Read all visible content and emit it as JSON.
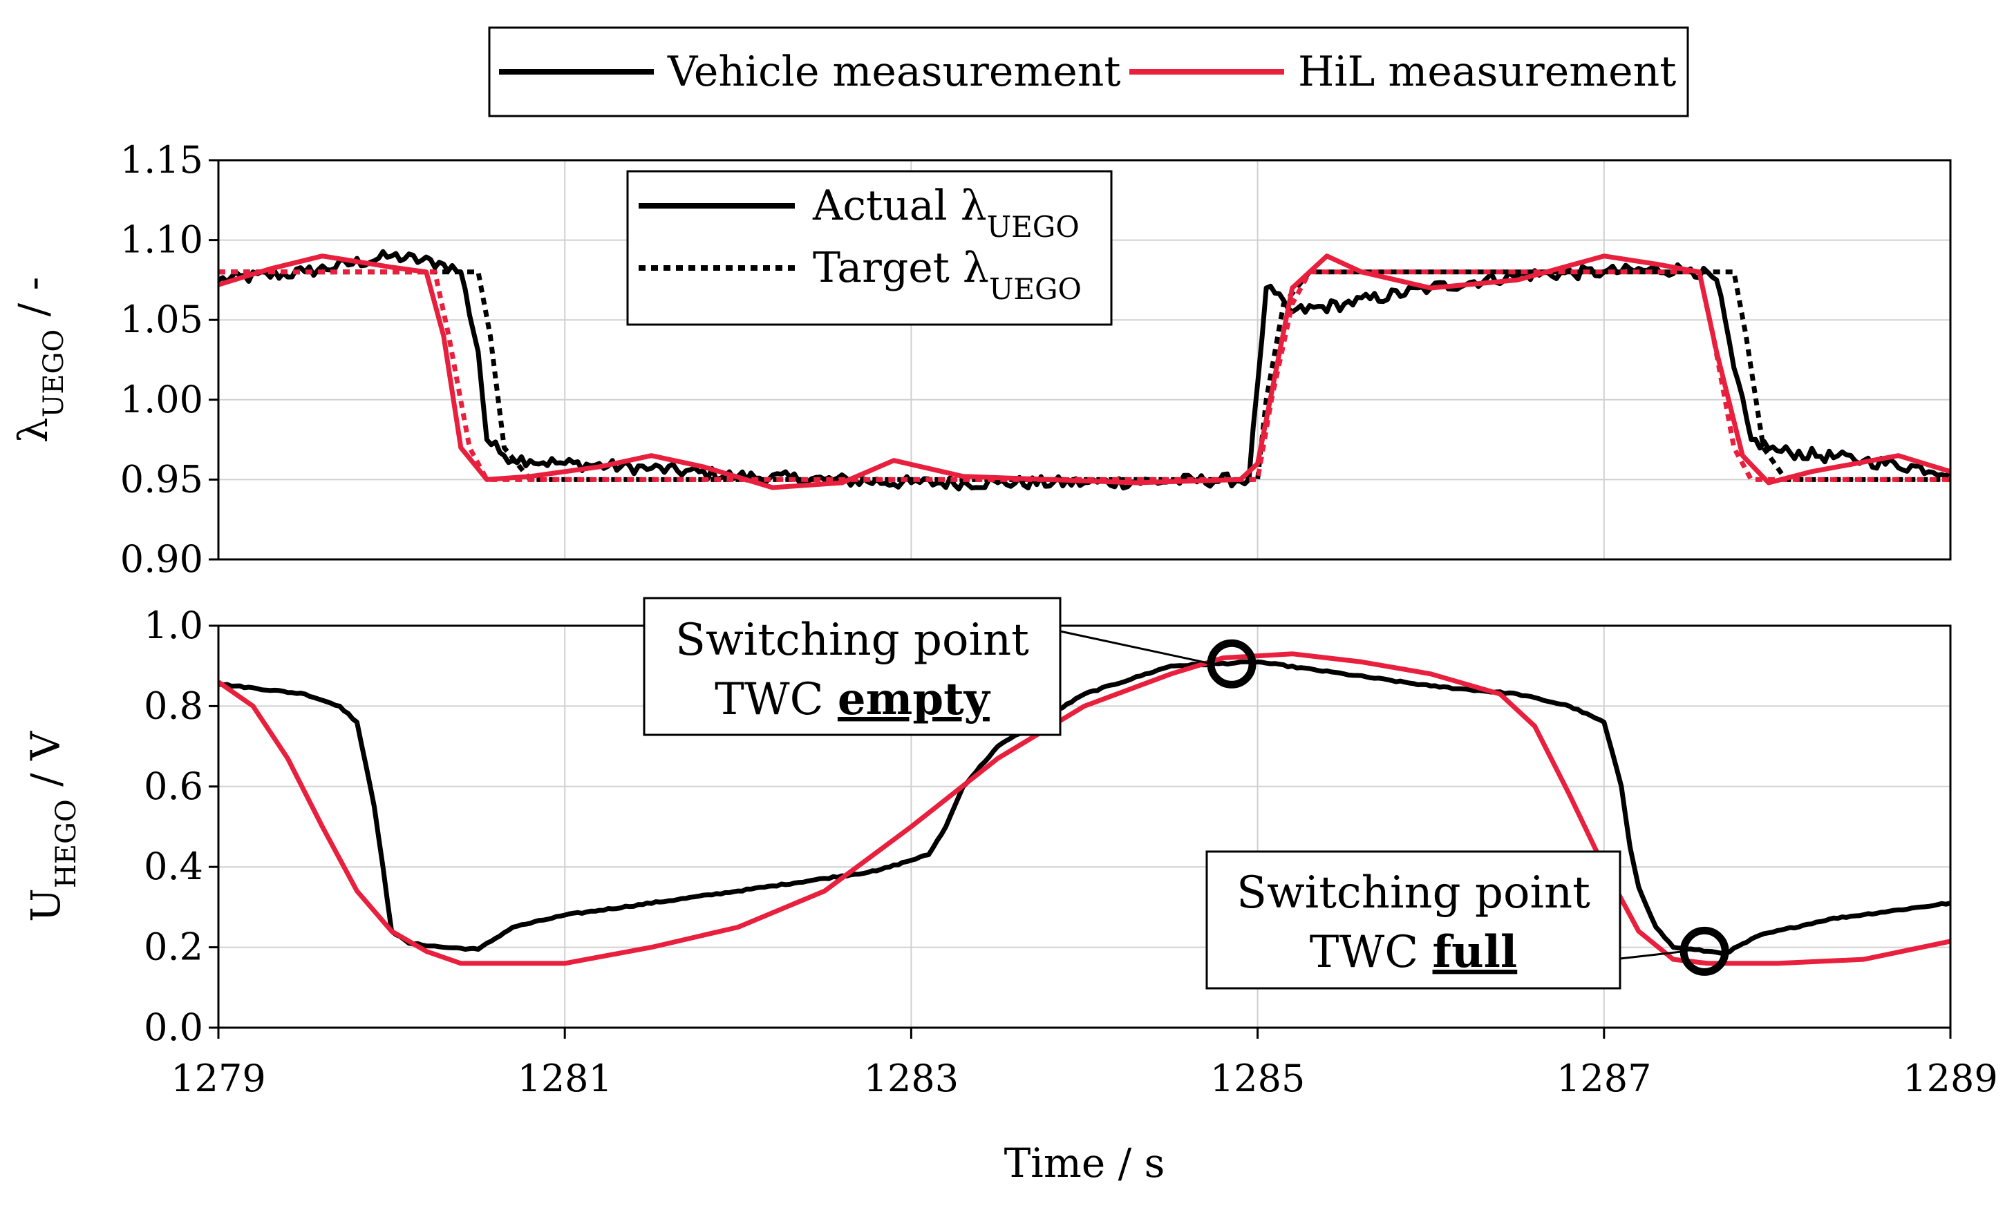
{
  "chart_data": [
    {
      "type": "line",
      "id": "lambda",
      "ylabel_main": "λ",
      "ylabel_sub": "UEGO",
      "ylabel_tail": " / -",
      "xlabel": "",
      "xlim": [
        1279,
        1289
      ],
      "ylim": [
        0.9,
        1.15
      ],
      "yticks": [
        "0.90",
        "0.95",
        "1.00",
        "1.05",
        "1.10",
        "1.15"
      ],
      "ytick_values": [
        0.9,
        0.95,
        1.0,
        1.05,
        1.1,
        1.15
      ],
      "xgrid": [
        1279,
        1281,
        1283,
        1285,
        1287,
        1289
      ],
      "legend": {
        "placement": "top-left",
        "entries": [
          {
            "main": "Actual λ",
            "sub": "UEGO",
            "style": "solid"
          },
          {
            "main": "Target λ",
            "sub": "UEGO",
            "style": "dotted"
          }
        ]
      },
      "series": [
        {
          "name": "Vehicle actual λ",
          "color": "#000000",
          "style": "solid",
          "noise": 0.004,
          "x": [
            1279,
            1279.5,
            1280,
            1280.3,
            1280.4,
            1280.5,
            1280.55,
            1280.65,
            1280.8,
            1281,
            1281.5,
            1282,
            1282.5,
            1283,
            1283.5,
            1284,
            1284.5,
            1284.95,
            1285.0,
            1285.05,
            1285.2,
            1285.5,
            1286,
            1286.5,
            1287,
            1287.5,
            1287.65,
            1287.75,
            1287.85,
            1288,
            1288.5,
            1289
          ],
          "y": [
            1.075,
            1.08,
            1.09,
            1.085,
            1.08,
            1.03,
            0.975,
            0.965,
            0.962,
            0.96,
            0.957,
            0.952,
            0.95,
            0.948,
            0.948,
            0.948,
            0.949,
            0.95,
            1.01,
            1.07,
            1.055,
            1.06,
            1.07,
            1.078,
            1.08,
            1.082,
            1.075,
            1.02,
            0.975,
            0.968,
            0.962,
            0.955
          ]
        },
        {
          "name": "Vehicle target λ",
          "color": "#000000",
          "style": "dotted",
          "noise": 0,
          "x": [
            1279,
            1280.5,
            1280.57,
            1280.65,
            1280.8,
            1285.0,
            1285.05,
            1285.15,
            1285.3,
            1287.75,
            1287.82,
            1287.92,
            1288.05,
            1289
          ],
          "y": [
            1.08,
            1.08,
            1.04,
            0.97,
            0.95,
            0.95,
            1.0,
            1.06,
            1.08,
            1.08,
            1.04,
            0.97,
            0.95,
            0.95
          ]
        },
        {
          "name": "HiL actual λ",
          "color": "#e8203d",
          "style": "solid",
          "noise": 0,
          "x": [
            1279,
            1279.3,
            1279.6,
            1280,
            1280.2,
            1280.3,
            1280.4,
            1280.55,
            1280.8,
            1281.2,
            1281.5,
            1281.8,
            1282.2,
            1282.6,
            1282.9,
            1283.3,
            1283.8,
            1284.3,
            1284.9,
            1285.0,
            1285.2,
            1285.4,
            1285.6,
            1286.0,
            1286.5,
            1287.0,
            1287.3,
            1287.55,
            1287.65,
            1287.8,
            1287.95,
            1288.2,
            1288.7,
            1289
          ],
          "y": [
            1.072,
            1.082,
            1.09,
            1.083,
            1.08,
            1.04,
            0.97,
            0.95,
            0.952,
            0.958,
            0.965,
            0.958,
            0.945,
            0.948,
            0.962,
            0.952,
            0.95,
            0.948,
            0.95,
            0.96,
            1.07,
            1.09,
            1.08,
            1.07,
            1.075,
            1.09,
            1.085,
            1.08,
            1.03,
            0.965,
            0.948,
            0.955,
            0.965,
            0.955
          ]
        },
        {
          "name": "HiL target λ",
          "color": "#e8203d",
          "style": "dotted",
          "noise": 0,
          "x": [
            1279,
            1280.25,
            1280.33,
            1280.45,
            1280.55,
            1285.0,
            1285.08,
            1285.2,
            1285.3,
            1287.55,
            1287.63,
            1287.75,
            1287.85,
            1289
          ],
          "y": [
            1.08,
            1.08,
            1.04,
            0.97,
            0.95,
            0.95,
            1.0,
            1.06,
            1.08,
            1.08,
            1.04,
            0.97,
            0.95,
            0.95
          ]
        }
      ]
    },
    {
      "type": "line",
      "id": "hego",
      "ylabel_main": "U",
      "ylabel_sub": "HEGO",
      "ylabel_tail": " / V",
      "xlabel": "Time / s",
      "xlim": [
        1279,
        1289
      ],
      "ylim": [
        0.0,
        1.0
      ],
      "yticks": [
        "0.0",
        "0.2",
        "0.4",
        "0.6",
        "0.8",
        "1.0"
      ],
      "ytick_values": [
        0.0,
        0.2,
        0.4,
        0.6,
        0.8,
        1.0
      ],
      "xticks": [
        "1279",
        "1281",
        "1283",
        "1285",
        "1287",
        "1289"
      ],
      "xtick_values": [
        1279,
        1281,
        1283,
        1285,
        1287,
        1289
      ],
      "series": [
        {
          "name": "Vehicle measurement",
          "color": "#000000",
          "style": "solid",
          "noise": 0.002,
          "x": [
            1279,
            1279.5,
            1279.7,
            1279.8,
            1279.9,
            1279.95,
            1280.0,
            1280.1,
            1280.3,
            1280.5,
            1280.7,
            1281,
            1282,
            1282.8,
            1283.1,
            1283.2,
            1283.3,
            1283.5,
            1284,
            1284.5,
            1285,
            1285.5,
            1286,
            1286.5,
            1286.8,
            1287.0,
            1287.1,
            1287.15,
            1287.2,
            1287.3,
            1287.4,
            1287.6,
            1287.7,
            1287.9,
            1288.3,
            1289
          ],
          "y": [
            0.855,
            0.83,
            0.8,
            0.76,
            0.55,
            0.4,
            0.24,
            0.21,
            0.2,
            0.195,
            0.25,
            0.28,
            0.34,
            0.39,
            0.43,
            0.5,
            0.6,
            0.7,
            0.83,
            0.9,
            0.91,
            0.88,
            0.85,
            0.83,
            0.8,
            0.76,
            0.6,
            0.45,
            0.35,
            0.25,
            0.2,
            0.19,
            0.185,
            0.23,
            0.27,
            0.31
          ]
        },
        {
          "name": "HiL measurement",
          "color": "#e8203d",
          "style": "solid",
          "noise": 0,
          "x": [
            1279,
            1279.2,
            1279.4,
            1279.6,
            1279.8,
            1280,
            1280.2,
            1280.4,
            1280.7,
            1281,
            1281.5,
            1282,
            1282.5,
            1283,
            1283.5,
            1284,
            1284.5,
            1284.8,
            1285.2,
            1285.6,
            1286,
            1286.4,
            1286.6,
            1286.8,
            1287,
            1287.2,
            1287.4,
            1287.6,
            1288,
            1288.5,
            1289
          ],
          "y": [
            0.86,
            0.8,
            0.67,
            0.5,
            0.34,
            0.24,
            0.19,
            0.16,
            0.16,
            0.16,
            0.2,
            0.25,
            0.34,
            0.5,
            0.67,
            0.8,
            0.88,
            0.92,
            0.93,
            0.91,
            0.88,
            0.83,
            0.75,
            0.58,
            0.4,
            0.24,
            0.17,
            0.16,
            0.16,
            0.17,
            0.215
          ]
        }
      ],
      "annotations": [
        {
          "line1": "Switching point",
          "line2_prefix": "TWC ",
          "line2_bold": "empty",
          "point_x": 1284.85,
          "point_y": 0.905
        },
        {
          "line1": "Switching point",
          "line2_prefix": "TWC ",
          "line2_bold": "full",
          "point_x": 1287.58,
          "point_y": 0.19
        }
      ]
    }
  ],
  "legend_top": {
    "entries": [
      {
        "label": "Vehicle measurement",
        "color": "#000000"
      },
      {
        "label": "HiL measurement",
        "color": "#e8203d"
      }
    ]
  }
}
